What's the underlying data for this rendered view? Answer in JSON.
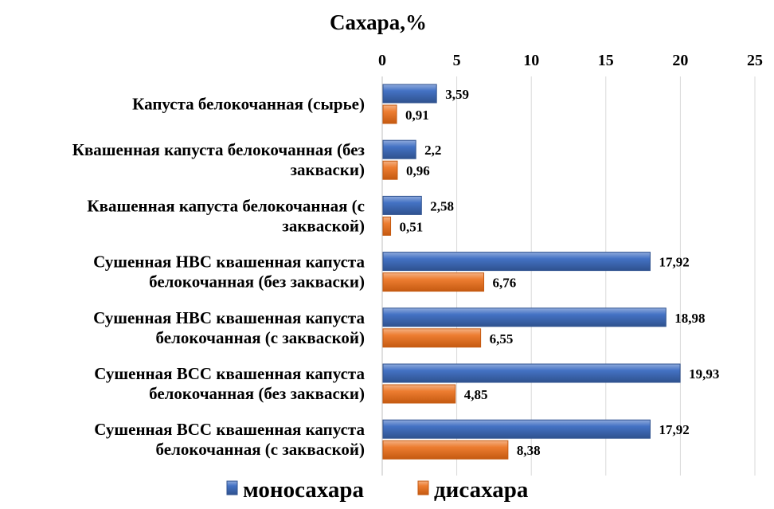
{
  "chart_data": {
    "type": "bar",
    "orientation": "horizontal",
    "title": "Сахара,%",
    "xlabel": "",
    "ylabel": "",
    "xlim": [
      0,
      25
    ],
    "x_ticks": [
      0,
      5,
      10,
      15,
      20,
      25
    ],
    "x_axis_position": "top",
    "grid": true,
    "legend_position": "bottom",
    "categories": [
      [
        "Капуста белокочанная (сырье)"
      ],
      [
        "Квашенная капуста белокочанная (без",
        "закваски)"
      ],
      [
        "Квашенная капуста белокочанная (с",
        "закваской)"
      ],
      [
        "Сушенная НВС квашенная капуста",
        "белокочанная (без закваски)"
      ],
      [
        "Сушенная НВС квашенная капуста",
        "белокочанная (с закваской)"
      ],
      [
        "Сушенная ВСС квашенная капуста",
        "белокочанная (без закваски)"
      ],
      [
        "Сушенная ВСС квашенная капуста",
        "белокочанная (с закваской)"
      ]
    ],
    "series": [
      {
        "name": "моносахара",
        "color": "#4472C4",
        "values": [
          3.59,
          2.2,
          2.58,
          17.92,
          18.98,
          19.93,
          17.92
        ],
        "labels": [
          "3,59",
          "2,2",
          "2,58",
          "17,92",
          "18,98",
          "19,93",
          "17,92"
        ]
      },
      {
        "name": "дисахара",
        "color": "#ED7D31",
        "values": [
          0.91,
          0.96,
          0.51,
          6.76,
          6.55,
          4.85,
          8.38
        ],
        "labels": [
          "0,91",
          "0,96",
          "0,51",
          "6,76",
          "6,55",
          "4,85",
          "8,38"
        ]
      }
    ]
  }
}
